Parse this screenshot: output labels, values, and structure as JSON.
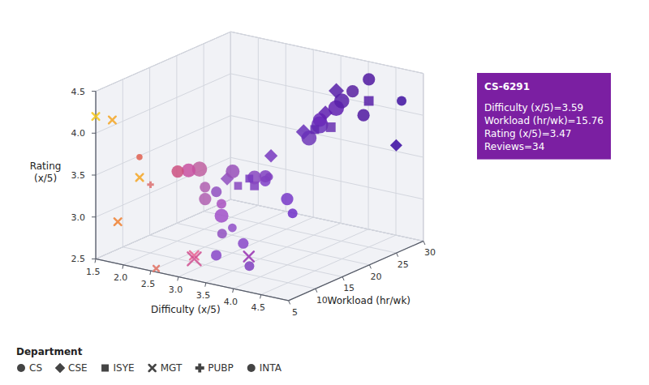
{
  "chart_data": {
    "type": "scatter3d",
    "xlabel": "Difficulty (x/5)",
    "ylabel": "Workload (hr/wk)",
    "zlabel": "Rating\n(x/5)",
    "xlim": [
      1.5,
      5.0
    ],
    "ylim": [
      5,
      30
    ],
    "zlim": [
      2.5,
      4.5
    ],
    "xticks": [
      1.5,
      {
        "value": 2,
        "label": "2.0"
      },
      2.5,
      {
        "value": 3,
        "label": "3.0"
      },
      3.5,
      {
        "value": 4,
        "label": "4.0"
      },
      4.5
    ],
    "yticks": [
      5,
      10,
      15,
      20,
      25,
      30
    ],
    "zticks": [
      2.5,
      {
        "value": 3,
        "label": "3.0"
      },
      3.5,
      {
        "value": 4,
        "label": "4.0"
      },
      4.5
    ],
    "grid": true,
    "legend": "bottom",
    "legend_title": "Department",
    "annotation": {
      "label": "CS-6291",
      "text": "Difficulty (x/5)=3.59\nWorkload (hr/wk)=15.76\nRating (x/5)=3.47\nReviews=34",
      "color": "#7b1fa2"
    },
    "series": [
      {
        "name": "CS",
        "marker": "circle",
        "color": "#444",
        "x": [
          2.0,
          2.4,
          2.5,
          2.6,
          2.7,
          2.8,
          2.9,
          3.0,
          3.0,
          3.1,
          3.1,
          3.2,
          3.3,
          3.5,
          3.5,
          3.6,
          3.59,
          3.8,
          3.8,
          4.0,
          4.0,
          4.1,
          4.2,
          4.3,
          4.4,
          4.5,
          4.5,
          4.8
        ],
        "y": [
          8,
          11,
          12,
          13,
          13,
          12,
          14,
          13,
          15,
          11,
          16,
          10,
          12,
          14,
          16,
          15,
          15.76,
          17,
          18,
          19,
          21,
          20,
          22,
          22,
          23,
          25,
          24,
          28
        ],
        "z": [
          3.7,
          3.5,
          3.5,
          3.5,
          3.3,
          3.2,
          3.1,
          3.0,
          2.8,
          2.6,
          2.6,
          3.4,
          3.6,
          3.5,
          3.4,
          3.5,
          3.47,
          3.2,
          3.0,
          3.9,
          4.0,
          4.1,
          4.2,
          4.3,
          4.4,
          4.5,
          4.1,
          4.2
        ],
        "sizes": [
          20,
          80,
          100,
          120,
          60,
          80,
          50,
          100,
          40,
          60,
          60,
          60,
          100,
          100,
          60,
          80,
          34,
          80,
          50,
          120,
          150,
          100,
          130,
          120,
          80,
          80,
          80,
          50
        ],
        "colors": [
          "#e06050",
          "#cc5080",
          "#c850a0",
          "#c060a0",
          "#b060b0",
          "#b060b0",
          "#a850c0",
          "#a050c8",
          "#9050c8",
          "#8848c8",
          "#8848c8",
          "#9050c0",
          "#9850b8",
          "#8848c0",
          "#8040c8",
          "#8040c0",
          "#8040c0",
          "#7838c8",
          "#7030c8",
          "#7038b8",
          "#6830b8",
          "#6828b8",
          "#6020b0",
          "#5820a8",
          "#5820a0",
          "#5018a0",
          "#5018a0",
          "#4010a0"
        ]
      },
      {
        "name": "CSE",
        "marker": "diamond",
        "color": "#444",
        "x": [
          3.2,
          3.8,
          4.0,
          4.2,
          4.3,
          4.8
        ],
        "y": [
          12,
          14,
          18,
          20,
          21,
          27
        ],
        "z": [
          3.5,
          3.8,
          4.0,
          4.2,
          4.45,
          3.7
        ],
        "sizes": [
          60,
          60,
          80,
          70,
          80,
          50
        ],
        "colors": [
          "#9050c0",
          "#7838c0",
          "#6830b8",
          "#6020b0",
          "#5820a8",
          "#3808a0"
        ]
      },
      {
        "name": "ISYE",
        "marker": "square",
        "color": "#444",
        "x": [
          3.3,
          3.5,
          3.7,
          4.2,
          4.3,
          4.4
        ],
        "y": [
          13,
          14,
          11,
          21,
          17,
          26
        ],
        "z": [
          3.4,
          3.4,
          3.6,
          4.0,
          4.1,
          4.2
        ],
        "sizes": [
          40,
          50,
          40,
          60,
          50,
          60
        ],
        "colors": [
          "#8848c0",
          "#8040c0",
          "#7838c0",
          "#6830b0",
          "#6028b0",
          "#5820a8"
        ]
      },
      {
        "name": "MGT",
        "marker": "x",
        "color": "#444",
        "x": [
          1.5,
          1.8,
          2.1,
          1.9,
          2.5,
          2.6,
          2.7,
          3.3
        ],
        "y": [
          5,
          5,
          7,
          5,
          6,
          12,
          11,
          15
        ],
        "z": [
          4.2,
          4.2,
          3.5,
          3.0,
          2.5,
          2.5,
          2.5,
          2.5
        ],
        "sizes": [
          40,
          40,
          40,
          40,
          25,
          60,
          140,
          80
        ],
        "colors": [
          "#f5c518",
          "#f5a623",
          "#f5a623",
          "#f08030",
          "#e07060",
          "#e86090",
          "#d05090",
          "#9830b0"
        ]
      },
      {
        "name": "PUBP",
        "marker": "plus",
        "color": "#444",
        "x": [
          2.2
        ],
        "y": [
          8
        ],
        "z": [
          3.4
        ],
        "sizes": [
          20
        ],
        "colors": [
          "#dd7070"
        ]
      },
      {
        "name": "INTA",
        "marker": "circle",
        "color": "#444",
        "x": [
          3.5,
          3.8
        ],
        "y": [
          8,
          10
        ],
        "z": [
          3.0,
          2.6
        ],
        "sizes": [
          50,
          50
        ],
        "colors": [
          "#9050c0",
          "#8040c0"
        ]
      }
    ]
  }
}
